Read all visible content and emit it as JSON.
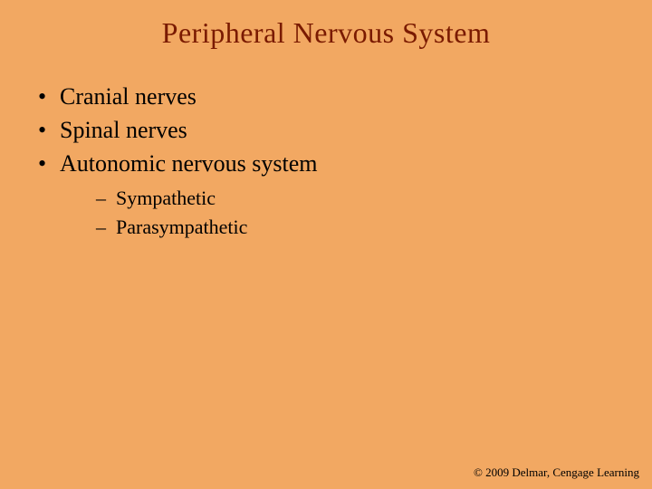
{
  "slide": {
    "background_color": "#f2a862",
    "title": {
      "text": "Peripheral Nervous System",
      "color": "#7a1a00",
      "fontsize": 32
    },
    "body": {
      "text_color": "#000000",
      "level1_fontsize": 26,
      "level2_fontsize": 22,
      "bullets": [
        {
          "text": "Cranial nerves"
        },
        {
          "text": "Spinal nerves"
        },
        {
          "text": "Autonomic nervous system",
          "children": [
            {
              "text": "Sympathetic"
            },
            {
              "text": "Parasympathetic"
            }
          ]
        }
      ]
    },
    "footer": {
      "text": "© 2009 Delmar, Cengage Learning",
      "color": "#000000",
      "fontsize": 13
    }
  }
}
